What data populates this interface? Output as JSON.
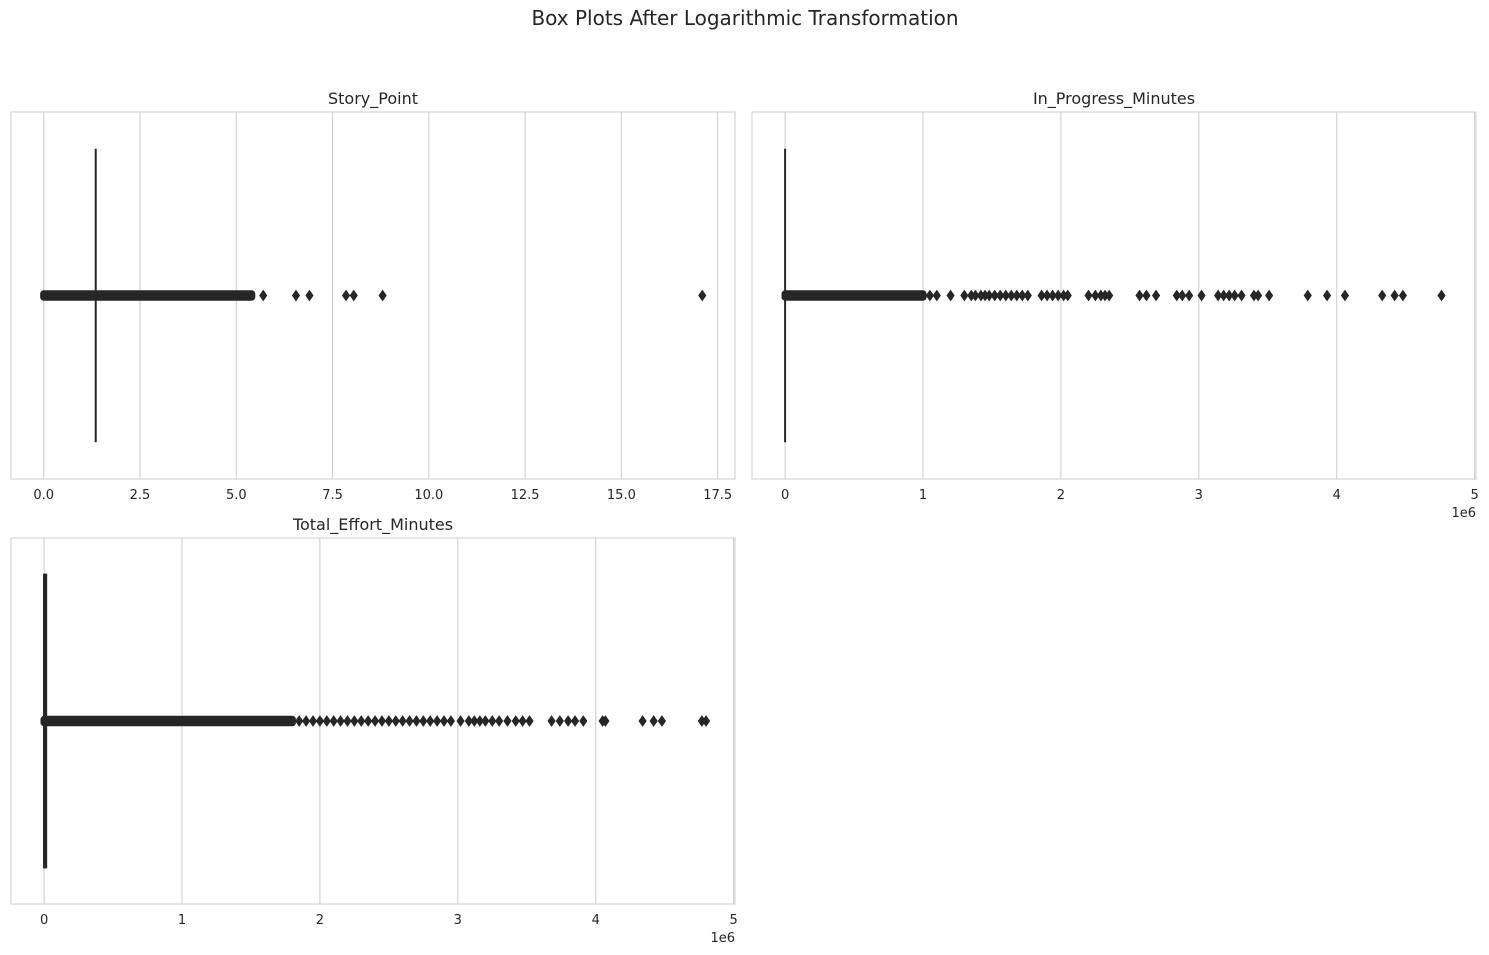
{
  "figure": {
    "title": "Box Plots After Logarithmic Transformation"
  },
  "chart_data": [
    {
      "type": "box",
      "orientation": "horizontal",
      "title": "Story_Point",
      "xlabel": "",
      "ylabel": "",
      "xlim": [
        -0.85,
        17.95
      ],
      "xticks": [
        0.0,
        2.5,
        5.0,
        7.5,
        10.0,
        12.5,
        15.0,
        17.5
      ],
      "xtick_labels": [
        "0.0",
        "2.5",
        "5.0",
        "7.5",
        "10.0",
        "12.5",
        "15.0",
        "17.5"
      ],
      "offset_text": "",
      "grid": true,
      "box": {
        "whisker_low": 1.35,
        "q1": 1.35,
        "median": 1.35,
        "q3": 1.35,
        "whisker_high": 1.35
      },
      "outlier_band": [
        0.0,
        5.4
      ],
      "outliers": [
        5.7,
        6.55,
        6.9,
        7.85,
        8.05,
        8.8,
        17.1
      ]
    },
    {
      "type": "box",
      "orientation": "horizontal",
      "title": "In_Progress_Minutes",
      "xlabel": "",
      "ylabel": "",
      "xlim": [
        -0.24,
        5.01
      ],
      "xticks": [
        0,
        1,
        2,
        3,
        4,
        5
      ],
      "xtick_labels": [
        "0",
        "1",
        "2",
        "3",
        "4",
        "5"
      ],
      "offset_text": "1e6",
      "grid": true,
      "box": {
        "whisker_low": 0.0,
        "q1": 0.0,
        "median": 0.0,
        "q3": 0.0,
        "whisker_high": 0.0
      },
      "outlier_band": [
        0.0,
        1.0
      ],
      "outliers": [
        1.05,
        1.1,
        1.2,
        1.3,
        1.35,
        1.38,
        1.42,
        1.45,
        1.48,
        1.52,
        1.56,
        1.6,
        1.64,
        1.68,
        1.72,
        1.76,
        1.86,
        1.9,
        1.94,
        1.98,
        2.02,
        2.05,
        2.2,
        2.25,
        2.29,
        2.32,
        2.35,
        2.57,
        2.62,
        2.69,
        2.84,
        2.88,
        2.93,
        3.02,
        3.14,
        3.18,
        3.22,
        3.26,
        3.31,
        3.4,
        3.43,
        3.51,
        3.79,
        3.93,
        4.06,
        4.33,
        4.42,
        4.48,
        4.76
      ]
    },
    {
      "type": "box",
      "orientation": "horizontal",
      "title": "Total_Effort_Minutes",
      "xlabel": "",
      "ylabel": "",
      "xlim": [
        -0.24,
        5.01
      ],
      "xticks": [
        0,
        1,
        2,
        3,
        4,
        5
      ],
      "xtick_labels": [
        "0",
        "1",
        "2",
        "3",
        "4",
        "5"
      ],
      "offset_text": "1e6",
      "grid": true,
      "box": {
        "whisker_low": 0.0,
        "q1": 0.0,
        "median": 0.0,
        "q3": 0.015,
        "whisker_high": 0.015
      },
      "outlier_band": [
        0.0,
        1.8
      ],
      "outliers": [
        1.85,
        1.9,
        1.95,
        2.0,
        2.05,
        2.1,
        2.15,
        2.2,
        2.25,
        2.3,
        2.35,
        2.4,
        2.45,
        2.5,
        2.55,
        2.6,
        2.65,
        2.7,
        2.75,
        2.8,
        2.85,
        2.9,
        2.95,
        3.02,
        3.08,
        3.12,
        3.16,
        3.2,
        3.25,
        3.3,
        3.36,
        3.42,
        3.47,
        3.52,
        3.68,
        3.74,
        3.8,
        3.85,
        3.91,
        4.05,
        4.07,
        4.34,
        4.42,
        4.48,
        4.77,
        4.8
      ]
    }
  ]
}
